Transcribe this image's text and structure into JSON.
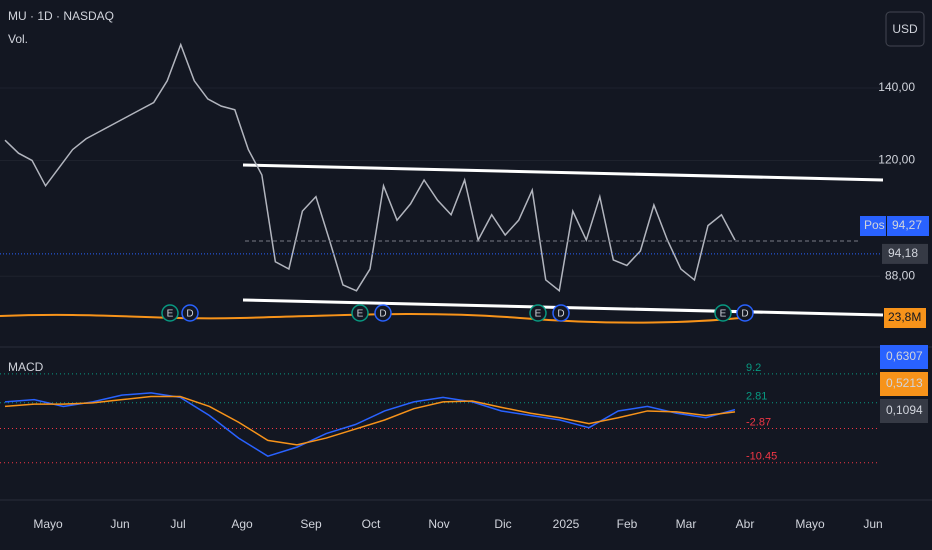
{
  "header": {
    "symbol": "MU · 1D · NASDAQ",
    "volume": "Vol.",
    "indicator": "MACD",
    "currency": "USD"
  },
  "price_chart": {
    "ylim": [
      70.4,
      158.8
    ],
    "yticks": [
      {
        "value": 140,
        "label": "140,00"
      },
      {
        "value": 120,
        "label": "120,00"
      },
      {
        "value": 88,
        "label": "88,00"
      }
    ],
    "values": [
      125.6,
      122,
      120,
      113,
      118,
      123,
      126,
      128,
      130,
      132,
      134,
      136,
      142,
      152,
      142,
      137,
      135,
      134,
      123,
      116,
      92,
      90,
      106,
      110,
      98,
      85.6,
      84,
      90,
      113,
      103.5,
      108,
      114.6,
      109,
      105,
      114.6,
      98,
      105,
      99.4,
      103.5,
      111.8,
      87,
      84,
      106,
      98,
      110,
      92.5,
      91,
      95,
      107.7,
      98,
      90,
      87,
      102,
      105,
      98
    ],
    "position": {
      "tag": "Pos",
      "label": "94,27"
    },
    "last_price": {
      "value": 94.18,
      "label": "94,18"
    },
    "volume_label": "23,8M"
  },
  "events": [
    "E",
    "D",
    "E",
    "D",
    "E",
    "D",
    "E",
    "D"
  ],
  "macd": {
    "ylim": [
      -12.5,
      10.5
    ],
    "levels": [
      9.2,
      2.81,
      -2.87,
      -10.45
    ],
    "macd": [
      3,
      3.5,
      2,
      3,
      4.5,
      5,
      4,
      0,
      -5,
      -9,
      -7,
      -4,
      -2,
      1,
      3,
      4,
      3,
      1,
      0,
      -1,
      -2.7,
      1,
      2,
      0.5,
      -0.5,
      1.3
    ],
    "signal": [
      2,
      2.5,
      2.5,
      2.8,
      3.5,
      4.2,
      4.2,
      2,
      -1.5,
      -5.5,
      -6.5,
      -5,
      -3,
      -1,
      1.5,
      3,
      3.2,
      1.8,
      0.5,
      -0.5,
      -1.8,
      -0.5,
      1,
      0.8,
      0,
      0.8
    ],
    "labels": [
      "0,6307",
      "0,5213",
      "0,1094"
    ]
  },
  "time_axis": [
    "Mayo",
    "Jun",
    "Jul",
    "Ago",
    "Sep",
    "Oct",
    "Nov",
    "Dic",
    "2025",
    "Feb",
    "Mar",
    "Abr",
    "Mayo",
    "Jun"
  ]
}
